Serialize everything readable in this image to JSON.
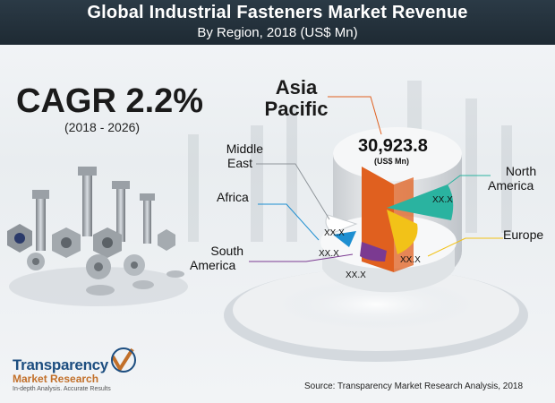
{
  "header": {
    "title": "Global Industrial Fasteners Market Revenue",
    "subtitle": "By Region, 2018 (US$ Mn)"
  },
  "cagr": {
    "label": "CAGR 2.2%",
    "period": "(2018 - 2026)"
  },
  "chart_data": {
    "type": "pie",
    "title": "Global Industrial Fasteners Market Revenue",
    "subtitle": "By Region, 2018 (US$ Mn)",
    "slices": [
      {
        "name": "Asia Pacific",
        "value": 30923.8,
        "value_label": "30,923.8",
        "unit": "(US$ Mn)",
        "color": "#e0601f"
      },
      {
        "name": "North America",
        "value_label": "XX.X",
        "color": "#2ab3a0"
      },
      {
        "name": "Europe",
        "value_label": "XX.X",
        "color": "#f2c218"
      },
      {
        "name": "South America",
        "value_label": "XX.X",
        "color": "#7b3a91"
      },
      {
        "name": "Africa",
        "value_label": "XX.X",
        "color": "#1e8fd1"
      },
      {
        "name": "Middle East",
        "value_label": "XX.X",
        "color": "#ffffff"
      }
    ]
  },
  "labels": {
    "asia": "Asia Pacific",
    "asia_value": "30,923.8",
    "asia_unit": "(US$ Mn)",
    "middle_east_1": "Middle",
    "middle_east_2": "East",
    "africa": "Africa",
    "south_america_1": "South",
    "south_america_2": "America",
    "north_america_1": "North",
    "north_america_2": "America",
    "europe": "Europe",
    "na_val": "XX.X",
    "eu_val": "XX.X",
    "sa_val": "XX.X",
    "af_val": "XX.X",
    "me_val": "XX.X"
  },
  "source": "Source: Transparency Market Research Analysis, 2018",
  "logo": {
    "line1": "Transparency",
    "line2": "Market Research",
    "tagline": "In-depth Analysis. Accurate Results"
  }
}
